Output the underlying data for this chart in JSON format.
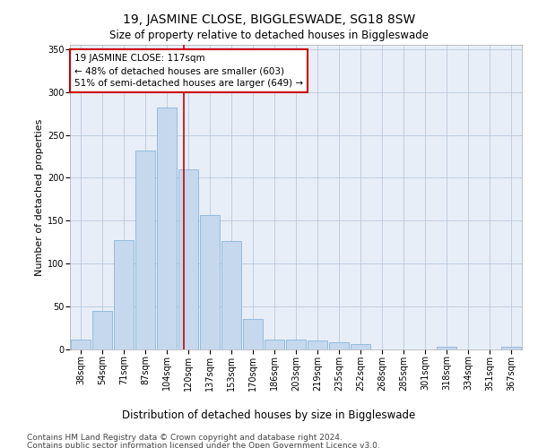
{
  "title": "19, JASMINE CLOSE, BIGGLESWADE, SG18 8SW",
  "subtitle": "Size of property relative to detached houses in Biggleswade",
  "xlabel": "Distribution of detached houses by size in Biggleswade",
  "ylabel": "Number of detached properties",
  "categories": [
    "38sqm",
    "54sqm",
    "71sqm",
    "87sqm",
    "104sqm",
    "120sqm",
    "137sqm",
    "153sqm",
    "170sqm",
    "186sqm",
    "203sqm",
    "219sqm",
    "235sqm",
    "252sqm",
    "268sqm",
    "285sqm",
    "301sqm",
    "318sqm",
    "334sqm",
    "351sqm",
    "367sqm"
  ],
  "values": [
    12,
    45,
    127,
    232,
    282,
    210,
    157,
    126,
    35,
    11,
    11,
    10,
    8,
    6,
    0,
    0,
    0,
    3,
    0,
    0,
    3
  ],
  "bar_color": "#c5d8ee",
  "bar_edgecolor": "#7aadd4",
  "vline_x": 4.78,
  "vline_color": "#cc0000",
  "ylim": [
    0,
    355
  ],
  "yticks": [
    0,
    50,
    100,
    150,
    200,
    250,
    300,
    350
  ],
  "annotation_text": "19 JASMINE CLOSE: 117sqm\n← 48% of detached houses are smaller (603)\n51% of semi-detached houses are larger (649) →",
  "annotation_box_color": "#ffffff",
  "annotation_box_edgecolor": "#cc0000",
  "footer1": "Contains HM Land Registry data © Crown copyright and database right 2024.",
  "footer2": "Contains public sector information licensed under the Open Government Licence v3.0.",
  "plot_bg_color": "#e8eef7",
  "title_fontsize": 10,
  "subtitle_fontsize": 8.5,
  "xlabel_fontsize": 8.5,
  "ylabel_fontsize": 8,
  "tick_fontsize": 7,
  "footer_fontsize": 6.5,
  "annotation_fontsize": 7.5
}
